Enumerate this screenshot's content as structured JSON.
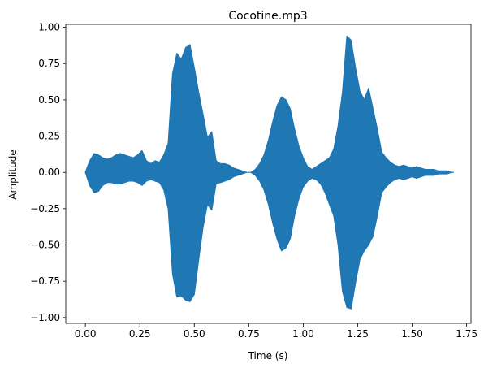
{
  "chart_data": {
    "type": "area",
    "title": "Cocotine.mp3",
    "xlabel": "Time (s)",
    "ylabel": "Amplitude",
    "xlim": [
      -0.09,
      1.77
    ],
    "ylim": [
      -1.04,
      1.02
    ],
    "xticks": [
      0.0,
      0.25,
      0.5,
      0.75,
      1.0,
      1.25,
      1.5,
      1.75
    ],
    "xtick_labels": [
      "0.00",
      "0.25",
      "0.50",
      "0.75",
      "1.00",
      "1.25",
      "1.50",
      "1.75"
    ],
    "yticks": [
      1.0,
      0.75,
      0.5,
      0.25,
      0.0,
      -0.25,
      -0.5,
      -0.75,
      -1.0
    ],
    "ytick_labels": [
      "1.00",
      "0.75",
      "0.50",
      "0.25",
      "0.00",
      "−0.25",
      "−0.50",
      "−0.75",
      "−1.00"
    ],
    "grid": false,
    "series": [
      {
        "color": "#1f77b4",
        "x": [
          0.0,
          0.02,
          0.04,
          0.06,
          0.08,
          0.1,
          0.12,
          0.14,
          0.16,
          0.18,
          0.2,
          0.22,
          0.24,
          0.26,
          0.28,
          0.3,
          0.32,
          0.34,
          0.36,
          0.38,
          0.4,
          0.42,
          0.44,
          0.46,
          0.48,
          0.5,
          0.52,
          0.54,
          0.56,
          0.58,
          0.6,
          0.62,
          0.64,
          0.66,
          0.68,
          0.7,
          0.72,
          0.74,
          0.76,
          0.78,
          0.8,
          0.82,
          0.84,
          0.86,
          0.88,
          0.9,
          0.92,
          0.94,
          0.96,
          0.98,
          1.0,
          1.02,
          1.04,
          1.06,
          1.08,
          1.1,
          1.12,
          1.14,
          1.16,
          1.18,
          1.2,
          1.22,
          1.24,
          1.26,
          1.28,
          1.3,
          1.32,
          1.34,
          1.36,
          1.38,
          1.4,
          1.42,
          1.44,
          1.46,
          1.48,
          1.5,
          1.52,
          1.54,
          1.56,
          1.58,
          1.6,
          1.62,
          1.64,
          1.66,
          1.68,
          1.69
        ],
        "upper": [
          0.0,
          0.08,
          0.13,
          0.12,
          0.1,
          0.09,
          0.1,
          0.12,
          0.13,
          0.12,
          0.11,
          0.1,
          0.12,
          0.15,
          0.08,
          0.06,
          0.08,
          0.07,
          0.12,
          0.2,
          0.68,
          0.82,
          0.78,
          0.86,
          0.88,
          0.72,
          0.55,
          0.4,
          0.24,
          0.28,
          0.08,
          0.06,
          0.06,
          0.05,
          0.03,
          0.02,
          0.01,
          0.0,
          0.0,
          0.02,
          0.06,
          0.12,
          0.22,
          0.35,
          0.46,
          0.52,
          0.5,
          0.44,
          0.3,
          0.18,
          0.1,
          0.04,
          0.02,
          0.04,
          0.06,
          0.08,
          0.1,
          0.16,
          0.32,
          0.55,
          0.94,
          0.91,
          0.72,
          0.56,
          0.5,
          0.58,
          0.44,
          0.3,
          0.14,
          0.1,
          0.07,
          0.05,
          0.04,
          0.05,
          0.04,
          0.03,
          0.04,
          0.03,
          0.02,
          0.02,
          0.02,
          0.01,
          0.01,
          0.01,
          0.0,
          0.0
        ],
        "lower": [
          0.0,
          -0.09,
          -0.14,
          -0.13,
          -0.09,
          -0.07,
          -0.07,
          -0.08,
          -0.08,
          -0.07,
          -0.06,
          -0.06,
          -0.07,
          -0.09,
          -0.06,
          -0.05,
          -0.06,
          -0.07,
          -0.12,
          -0.25,
          -0.7,
          -0.86,
          -0.85,
          -0.88,
          -0.89,
          -0.84,
          -0.6,
          -0.38,
          -0.22,
          -0.26,
          -0.08,
          -0.07,
          -0.06,
          -0.05,
          -0.03,
          -0.02,
          -0.01,
          0.0,
          0.0,
          -0.02,
          -0.06,
          -0.12,
          -0.22,
          -0.35,
          -0.46,
          -0.54,
          -0.52,
          -0.46,
          -0.3,
          -0.18,
          -0.1,
          -0.06,
          -0.04,
          -0.05,
          -0.08,
          -0.14,
          -0.22,
          -0.3,
          -0.5,
          -0.82,
          -0.93,
          -0.94,
          -0.76,
          -0.6,
          -0.54,
          -0.5,
          -0.44,
          -0.3,
          -0.14,
          -0.1,
          -0.07,
          -0.05,
          -0.04,
          -0.05,
          -0.04,
          -0.03,
          -0.04,
          -0.03,
          -0.02,
          -0.02,
          -0.02,
          -0.01,
          -0.01,
          -0.01,
          0.0,
          0.0
        ]
      }
    ]
  }
}
